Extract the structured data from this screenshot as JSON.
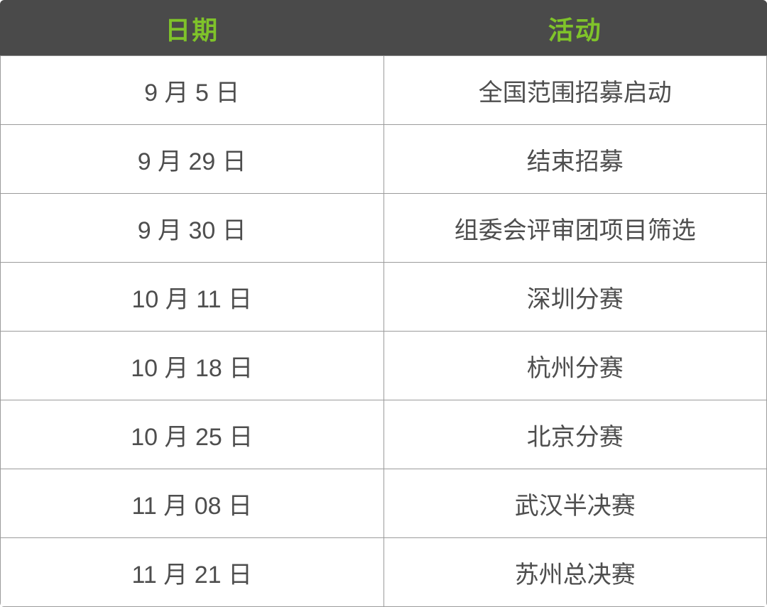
{
  "colors": {
    "header_background": "#4a4a4a",
    "header_text_green": "#7fc32a",
    "body_text": "#4e4e4e",
    "grid_line": "#9b9b9b",
    "row_background": "#ffffff"
  },
  "table": {
    "columns": [
      {
        "label": "日期"
      },
      {
        "label": "活动"
      }
    ],
    "rows": [
      {
        "date": "9 月 5 日",
        "activity": "全国范围招募启动"
      },
      {
        "date": "9 月 29 日",
        "activity": "结束招募"
      },
      {
        "date": "9 月 30 日",
        "activity": "组委会评审团项目筛选"
      },
      {
        "date": "10 月 11 日",
        "activity": "深圳分赛"
      },
      {
        "date": "10 月 18 日",
        "activity": "杭州分赛"
      },
      {
        "date": "10 月 25 日",
        "activity": "北京分赛"
      },
      {
        "date": "11 月 08 日",
        "activity": "武汉半决赛"
      },
      {
        "date": "11 月 21 日",
        "activity": "苏州总决赛"
      }
    ]
  }
}
